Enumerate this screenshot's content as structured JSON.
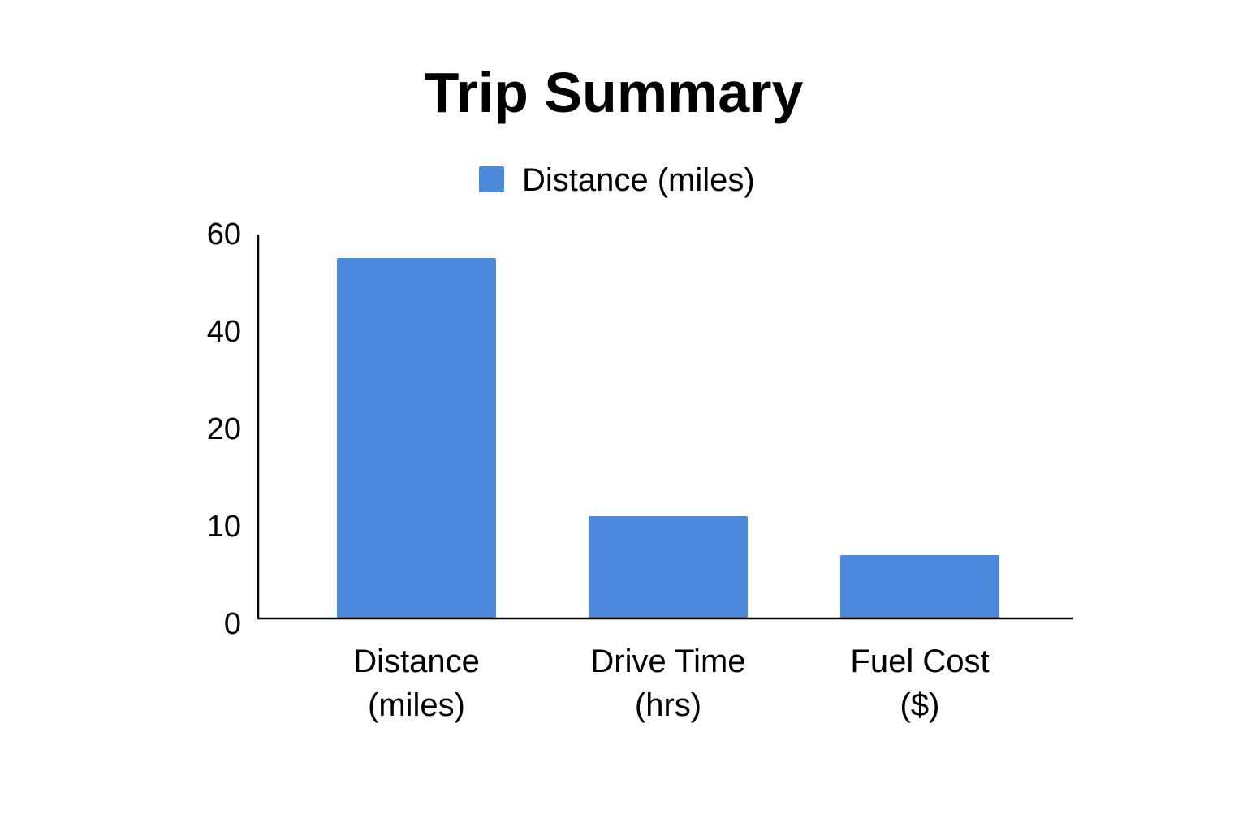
{
  "chart_data": {
    "type": "bar",
    "title": "Trip Summary",
    "xlabel": "",
    "ylabel": "",
    "categories": [
      [
        "Distance",
        "(miles)"
      ],
      [
        "Drive Time",
        "(hrs)"
      ],
      [
        "Fuel Cost",
        "($)"
      ]
    ],
    "series": [
      {
        "name": "Distance (miles)",
        "values": [
          54,
          10.5,
          6.5
        ],
        "color": "#4a89dc"
      }
    ],
    "y_ticks": [
      0,
      10,
      20,
      40,
      60
    ],
    "ylim": [
      0,
      60
    ],
    "grid": false,
    "legend_position": "top-center"
  }
}
